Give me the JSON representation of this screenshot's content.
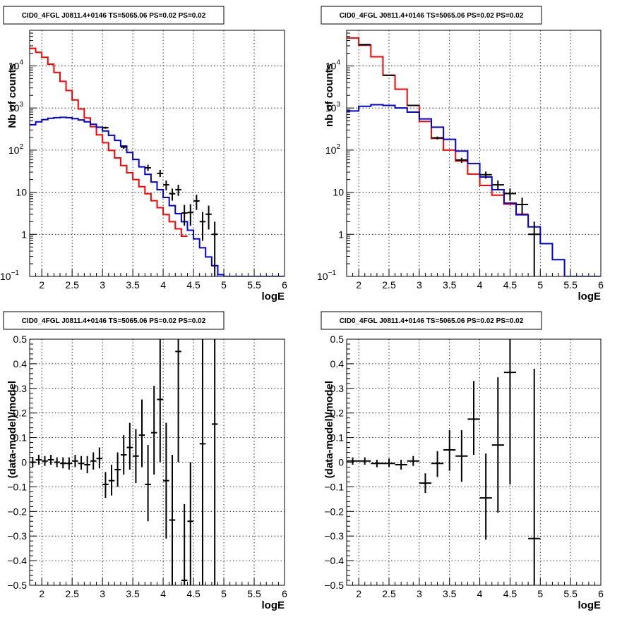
{
  "chart_data": [
    {
      "type": "line",
      "title": "CID0_4FGL J0811.4+0146 TS=5065.06 PS=0.02 PS=0.02",
      "xlabel": "logE",
      "ylabel": "Nb of counts",
      "xlim": [
        1.8,
        6
      ],
      "ylim": [
        0.1,
        70000
      ],
      "yscale": "log",
      "grid": true,
      "xticks": [
        "2",
        "2.5",
        "3",
        "3.5",
        "4",
        "4.5",
        "5",
        "5.5",
        "6"
      ],
      "yticks": [
        {
          "value": 0.1,
          "base": "10",
          "exp": "−1"
        },
        {
          "value": 1,
          "label": "1"
        },
        {
          "value": 10,
          "label": "10"
        },
        {
          "value": 100,
          "base": "10",
          "exp": "2"
        },
        {
          "value": 1000,
          "base": "10",
          "exp": "3"
        },
        {
          "value": 10000,
          "base": "10",
          "exp": "4"
        }
      ],
      "bin_width": 0.1,
      "series": [
        {
          "color": "#ff0000",
          "style": "histogram",
          "x_start": 1.8,
          "values": [
            26000,
            21000,
            16000,
            11000,
            7000,
            4300,
            2600,
            1550,
            950,
            580,
            360,
            230,
            150,
            98,
            65,
            43,
            29,
            20,
            13.5,
            9.2,
            6.3,
            4.3,
            2.95,
            2.0,
            1.35,
            0.9
          ]
        },
        {
          "color": "#0000dd",
          "style": "histogram",
          "x_start": 1.8,
          "values": [
            400,
            470,
            530,
            570,
            590,
            600,
            590,
            560,
            520,
            470,
            410,
            350,
            285,
            225,
            170,
            125,
            88,
            60,
            40,
            26.5,
            17.5,
            11.5,
            7.5,
            4.8,
            3.1,
            2.0,
            1.25,
            0.78,
            0.48,
            0.29,
            0.18,
            0.11,
            0.1,
            0.1,
            0.1,
            0.1,
            0.1,
            0.1,
            0.1,
            0.1,
            0.1,
            0.1
          ]
        },
        {
          "color": "#000000",
          "style": "errorbar",
          "x_halfwidth": 0.05,
          "points": [
            {
              "x": 3.05,
              "y": 340,
              "lo": 320,
              "hi": 360
            },
            {
              "x": 3.35,
              "y": 118,
              "lo": 107,
              "hi": 129
            },
            {
              "x": 3.75,
              "y": 38,
              "lo": 32,
              "hi": 45
            },
            {
              "x": 3.95,
              "y": 28,
              "lo": 23,
              "hi": 34
            },
            {
              "x": 4.05,
              "y": 15,
              "lo": 11,
              "hi": 19
            },
            {
              "x": 4.15,
              "y": 9.2,
              "lo": 6.3,
              "hi": 12.2
            },
            {
              "x": 4.25,
              "y": 11.5,
              "lo": 8.2,
              "hi": 15
            },
            {
              "x": 4.35,
              "y": 3.2,
              "lo": 1.6,
              "hi": 5
            },
            {
              "x": 4.45,
              "y": 3.3,
              "lo": 1.6,
              "hi": 5.2
            },
            {
              "x": 4.55,
              "y": 6.2,
              "lo": 3.8,
              "hi": 8.7
            },
            {
              "x": 4.65,
              "y": 2.0,
              "lo": 0.7,
              "hi": 3.4
            },
            {
              "x": 4.75,
              "y": 3.0,
              "lo": 1.3,
              "hi": 4.8
            },
            {
              "x": 4.85,
              "y": 1.0,
              "lo": 0.1,
              "hi": 2.0
            }
          ]
        }
      ]
    },
    {
      "type": "line",
      "title": "CID0_4FGL J0811.4+0146 TS=5065.06 PS=0.02 PS=0.02",
      "xlabel": "logE",
      "ylabel": "nb of counts",
      "xlim": [
        1.8,
        6
      ],
      "ylim": [
        0.1,
        70000
      ],
      "yscale": "log",
      "grid": true,
      "xticks": [
        "2",
        "2.5",
        "3",
        "3.5",
        "4",
        "4.5",
        "5",
        "5.5",
        "6"
      ],
      "yticks": [
        {
          "value": 0.1,
          "base": "10",
          "exp": "−1"
        },
        {
          "value": 1,
          "label": "1"
        },
        {
          "value": 10,
          "label": "10"
        },
        {
          "value": 100,
          "base": "10",
          "exp": "2"
        },
        {
          "value": 1000,
          "base": "10",
          "exp": "3"
        },
        {
          "value": 10000,
          "base": "10",
          "exp": "4"
        }
      ],
      "bin_width": 0.2,
      "series": [
        {
          "color": "#ff0000",
          "style": "histogram",
          "x_start": 1.8,
          "values": [
            46000,
            31000,
            16500,
            6000,
            2800,
            1150,
            480,
            190,
            100,
            55,
            27,
            14.5,
            8.5,
            5.2,
            3.0
          ]
        },
        {
          "color": "#0000dd",
          "style": "histogram",
          "x_start": 1.8,
          "values": [
            850,
            1100,
            1200,
            1150,
            1000,
            800,
            550,
            350,
            180,
            95,
            48,
            23,
            11.5,
            5.5,
            2.9,
            1.5,
            0.6,
            0.25,
            0.1,
            0.1,
            0.1
          ]
        },
        {
          "color": "#000000",
          "style": "errorbar",
          "x_halfwidth": 0.1,
          "points": [
            {
              "x": 2.1,
              "y": 32000,
              "lo": 31500,
              "hi": 32500
            },
            {
              "x": 2.5,
              "y": 6000,
              "lo": 5900,
              "hi": 6100
            },
            {
              "x": 2.9,
              "y": 1150,
              "lo": 1110,
              "hi": 1190
            },
            {
              "x": 3.3,
              "y": 195,
              "lo": 180,
              "hi": 210
            },
            {
              "x": 3.7,
              "y": 58,
              "lo": 50,
              "hi": 66
            },
            {
              "x": 4.1,
              "y": 26,
              "lo": 21,
              "hi": 31
            },
            {
              "x": 4.3,
              "y": 15,
              "lo": 11,
              "hi": 19
            },
            {
              "x": 4.5,
              "y": 9.3,
              "lo": 6.3,
              "hi": 12.3
            },
            {
              "x": 4.7,
              "y": 5.1,
              "lo": 2.9,
              "hi": 7.4
            },
            {
              "x": 4.9,
              "y": 1.0,
              "lo": 0.1,
              "hi": 2.0
            }
          ]
        }
      ]
    },
    {
      "type": "scatter",
      "title": "CID0_4FGL J0811.4+0146 TS=5065.06 PS=0.02 PS=0.02",
      "xlabel": "logE",
      "ylabel": "(data-model)/model",
      "xlim": [
        1.8,
        6
      ],
      "ylim": [
        -0.5,
        0.5
      ],
      "grid": true,
      "xticks": [
        "2",
        "2.5",
        "3",
        "3.5",
        "4",
        "4.5",
        "5",
        "5.5",
        "6"
      ],
      "yticks": [
        "−0.5",
        "−0.4",
        "−0.3",
        "−0.2",
        "−0.1",
        "0",
        "0.1",
        "0.2",
        "0.3",
        "0.4",
        "0.5"
      ],
      "series": [
        {
          "color": "#000000",
          "style": "errorbar",
          "x_halfwidth": 0.05,
          "points": [
            {
              "x": 1.85,
              "y": 0.0,
              "lo": -0.02,
              "hi": 0.02
            },
            {
              "x": 1.95,
              "y": 0.01,
              "lo": -0.01,
              "hi": 0.03
            },
            {
              "x": 2.05,
              "y": 0.005,
              "lo": -0.015,
              "hi": 0.025
            },
            {
              "x": 2.15,
              "y": 0.01,
              "lo": -0.01,
              "hi": 0.03
            },
            {
              "x": 2.25,
              "y": 0.0,
              "lo": -0.02,
              "hi": 0.02
            },
            {
              "x": 2.35,
              "y": -0.005,
              "lo": -0.025,
              "hi": 0.02
            },
            {
              "x": 2.45,
              "y": -0.005,
              "lo": -0.03,
              "hi": 0.02
            },
            {
              "x": 2.55,
              "y": 0.005,
              "lo": -0.02,
              "hi": 0.03
            },
            {
              "x": 2.65,
              "y": -0.005,
              "lo": -0.03,
              "hi": 0.025
            },
            {
              "x": 2.75,
              "y": -0.01,
              "lo": -0.045,
              "hi": 0.025
            },
            {
              "x": 2.85,
              "y": 0.005,
              "lo": -0.03,
              "hi": 0.04
            },
            {
              "x": 2.95,
              "y": 0.015,
              "lo": -0.025,
              "hi": 0.06
            },
            {
              "x": 3.05,
              "y": -0.09,
              "lo": -0.145,
              "hi": -0.04
            },
            {
              "x": 3.15,
              "y": -0.075,
              "lo": -0.135,
              "hi": -0.01
            },
            {
              "x": 3.25,
              "y": -0.03,
              "lo": -0.1,
              "hi": 0.04
            },
            {
              "x": 3.35,
              "y": 0.03,
              "lo": -0.05,
              "hi": 0.11
            },
            {
              "x": 3.45,
              "y": 0.06,
              "lo": -0.03,
              "hi": 0.16
            },
            {
              "x": 3.55,
              "y": 0.025,
              "lo": -0.085,
              "hi": 0.135
            },
            {
              "x": 3.65,
              "y": 0.11,
              "lo": -0.02,
              "hi": 0.255
            },
            {
              "x": 3.75,
              "y": -0.09,
              "lo": -0.24,
              "hi": 0.07
            },
            {
              "x": 3.85,
              "y": 0.12,
              "lo": -0.05,
              "hi": 0.31
            },
            {
              "x": 3.95,
              "y": 0.255,
              "lo": 0.0,
              "hi": 0.5
            },
            {
              "x": 4.05,
              "y": -0.075,
              "lo": -0.31,
              "hi": 0.16
            },
            {
              "x": 4.15,
              "y": -0.235,
              "lo": -0.5,
              "hi": 0.03
            },
            {
              "x": 4.25,
              "y": 0.45,
              "lo": 0.0,
              "hi": 0.5
            },
            {
              "x": 4.35,
              "y": -0.48,
              "lo": -0.5,
              "hi": -0.17
            },
            {
              "x": 4.45,
              "y": -0.24,
              "lo": -0.5,
              "hi": 0.0
            },
            {
              "x": 4.65,
              "y": 0.075,
              "lo": -0.5,
              "hi": 0.5
            },
            {
              "x": 4.85,
              "y": 0.155,
              "lo": -0.5,
              "hi": 0.5
            }
          ]
        }
      ]
    },
    {
      "type": "scatter",
      "title": "CID0_4FGL J0811.4+0146 TS=5065.06 PS=0.02 PS=0.02",
      "xlabel": "logE",
      "ylabel": "(data-model)/model",
      "xlim": [
        1.8,
        6
      ],
      "ylim": [
        -0.5,
        0.5
      ],
      "grid": true,
      "xticks": [
        "2",
        "2.5",
        "3",
        "3.5",
        "4",
        "4.5",
        "5",
        "5.5",
        "6"
      ],
      "yticks": [
        "−0.5",
        "−0.4",
        "−0.3",
        "−0.2",
        "−0.1",
        "0",
        "0.1",
        "0.2",
        "0.3",
        "0.4",
        "0.5"
      ],
      "series": [
        {
          "color": "#000000",
          "style": "errorbar",
          "x_halfwidth": 0.1,
          "points": [
            {
              "x": 1.9,
              "y": 0.005,
              "lo": -0.01,
              "hi": 0.02
            },
            {
              "x": 2.1,
              "y": 0.005,
              "lo": -0.01,
              "hi": 0.02
            },
            {
              "x": 2.3,
              "y": -0.005,
              "lo": -0.02,
              "hi": 0.01
            },
            {
              "x": 2.5,
              "y": -0.005,
              "lo": -0.02,
              "hi": 0.015
            },
            {
              "x": 2.7,
              "y": -0.01,
              "lo": -0.03,
              "hi": 0.01
            },
            {
              "x": 2.9,
              "y": 0.005,
              "lo": -0.015,
              "hi": 0.025
            },
            {
              "x": 3.1,
              "y": -0.085,
              "lo": -0.125,
              "hi": -0.045
            },
            {
              "x": 3.3,
              "y": -0.005,
              "lo": -0.06,
              "hi": 0.045
            },
            {
              "x": 3.5,
              "y": 0.05,
              "lo": -0.035,
              "hi": 0.13
            },
            {
              "x": 3.7,
              "y": 0.025,
              "lo": -0.08,
              "hi": 0.13
            },
            {
              "x": 3.9,
              "y": 0.175,
              "lo": 0.03,
              "hi": 0.33
            },
            {
              "x": 4.1,
              "y": -0.145,
              "lo": -0.315,
              "hi": 0.035
            },
            {
              "x": 4.3,
              "y": 0.07,
              "lo": -0.205,
              "hi": 0.345
            },
            {
              "x": 4.5,
              "y": 0.365,
              "lo": -0.09,
              "hi": 0.5
            },
            {
              "x": 4.9,
              "y": -0.31,
              "lo": -0.5,
              "hi": 0.38
            }
          ]
        }
      ]
    }
  ]
}
